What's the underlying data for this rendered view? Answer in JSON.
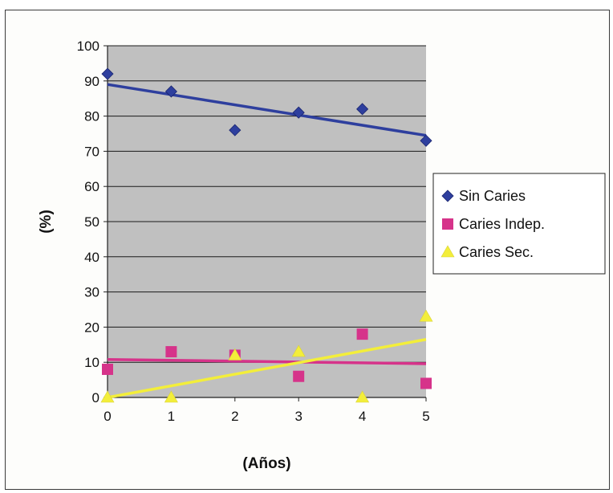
{
  "chart_data": {
    "type": "scatter",
    "title": "",
    "xlabel": "(Años)",
    "ylabel": "(%)",
    "x": [
      0,
      1,
      2,
      3,
      4,
      5
    ],
    "xlim": [
      0,
      5
    ],
    "ylim": [
      0,
      100
    ],
    "xticks": [
      "0",
      "1",
      "2",
      "3",
      "4",
      "5"
    ],
    "yticks": [
      "0",
      "10",
      "20",
      "30",
      "40",
      "50",
      "60",
      "70",
      "80",
      "90",
      "100"
    ],
    "grid": true,
    "trendlines": true,
    "legend_position": "right",
    "plot_background": "#c0c0c0",
    "series": [
      {
        "name": "Sin Caries",
        "marker": "diamond",
        "color": "#2e3f9e",
        "values": [
          92,
          87,
          76,
          81,
          82,
          73
        ],
        "trend": [
          89,
          74.5
        ]
      },
      {
        "name": "Caries Indep.",
        "marker": "square",
        "color": "#d6338a",
        "values": [
          8,
          13,
          12,
          6,
          18,
          4
        ],
        "trend": [
          10.8,
          9.6
        ]
      },
      {
        "name": "Caries Sec.",
        "marker": "triangle",
        "color": "#f3ee3a",
        "values": [
          0,
          0,
          12,
          13,
          0,
          23
        ],
        "trend": [
          0,
          16.5
        ]
      }
    ]
  }
}
